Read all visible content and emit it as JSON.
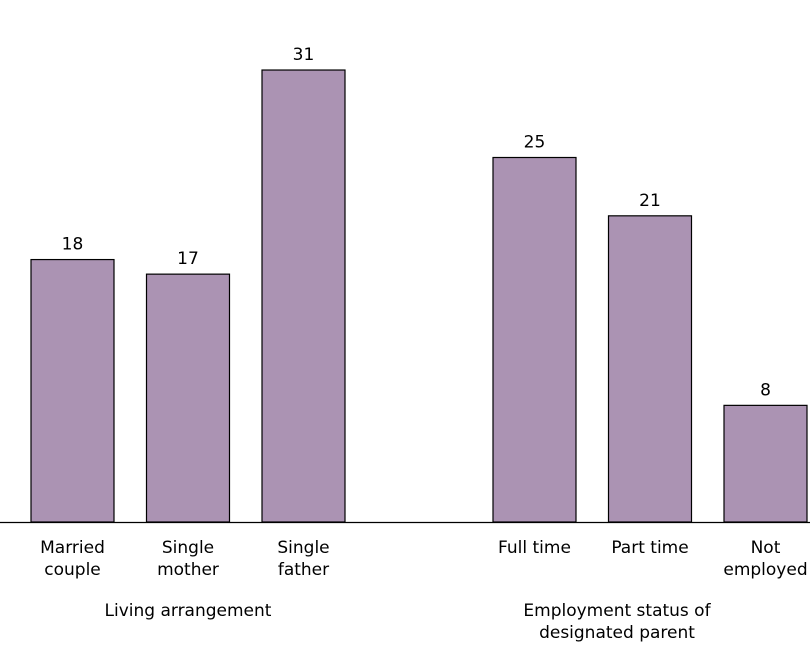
{
  "chart_data": {
    "type": "bar",
    "title": "",
    "ylim": [
      0,
      32
    ],
    "grid": false,
    "legend": "none",
    "bar_color": "#ab93b3",
    "bar_stroke": "#000000",
    "groups": [
      {
        "label": "Living arrangement",
        "categories": [
          "Married\ncouple",
          "Single\nmother",
          "Single\nfather"
        ],
        "values": [
          18,
          17,
          31
        ]
      },
      {
        "label": "Employment status of\ndesignated parent",
        "categories": [
          "Full time",
          "Part time",
          "Not\nemployed"
        ],
        "values": [
          25,
          21,
          8
        ]
      }
    ]
  }
}
